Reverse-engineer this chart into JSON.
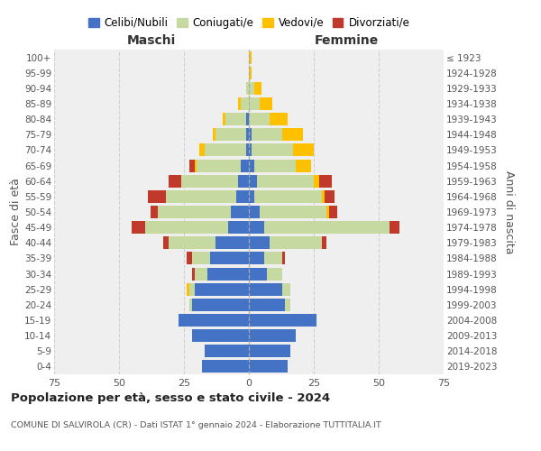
{
  "age_groups": [
    "0-4",
    "5-9",
    "10-14",
    "15-19",
    "20-24",
    "25-29",
    "30-34",
    "35-39",
    "40-44",
    "45-49",
    "50-54",
    "55-59",
    "60-64",
    "65-69",
    "70-74",
    "75-79",
    "80-84",
    "85-89",
    "90-94",
    "95-99",
    "100+"
  ],
  "birth_years": [
    "2019-2023",
    "2014-2018",
    "2009-2013",
    "2004-2008",
    "1999-2003",
    "1994-1998",
    "1989-1993",
    "1984-1988",
    "1979-1983",
    "1974-1978",
    "1969-1973",
    "1964-1968",
    "1959-1963",
    "1954-1958",
    "1949-1953",
    "1944-1948",
    "1939-1943",
    "1934-1938",
    "1929-1933",
    "1924-1928",
    "≤ 1923"
  ],
  "male": {
    "celibe": [
      18,
      17,
      22,
      27,
      22,
      21,
      16,
      15,
      13,
      8,
      7,
      5,
      4,
      3,
      1,
      1,
      1,
      0,
      0,
      0,
      0
    ],
    "coniugato": [
      0,
      0,
      0,
      0,
      1,
      2,
      5,
      7,
      18,
      32,
      28,
      27,
      22,
      17,
      16,
      12,
      8,
      3,
      1,
      0,
      0
    ],
    "vedovo": [
      0,
      0,
      0,
      0,
      0,
      1,
      0,
      0,
      0,
      0,
      0,
      0,
      0,
      1,
      2,
      1,
      1,
      1,
      0,
      0,
      0
    ],
    "divorziato": [
      0,
      0,
      0,
      0,
      0,
      0,
      1,
      2,
      2,
      5,
      3,
      7,
      5,
      2,
      0,
      0,
      0,
      0,
      0,
      0,
      0
    ]
  },
  "female": {
    "nubile": [
      15,
      16,
      18,
      26,
      14,
      13,
      7,
      6,
      8,
      6,
      4,
      2,
      3,
      2,
      1,
      1,
      0,
      0,
      0,
      0,
      0
    ],
    "coniugata": [
      0,
      0,
      0,
      0,
      2,
      3,
      6,
      7,
      20,
      48,
      26,
      26,
      22,
      16,
      16,
      12,
      8,
      4,
      2,
      0,
      0
    ],
    "vedova": [
      0,
      0,
      0,
      0,
      0,
      0,
      0,
      0,
      0,
      0,
      1,
      1,
      2,
      6,
      8,
      8,
      7,
      5,
      3,
      1,
      1
    ],
    "divorziata": [
      0,
      0,
      0,
      0,
      0,
      0,
      0,
      1,
      2,
      4,
      3,
      4,
      5,
      0,
      0,
      0,
      0,
      0,
      0,
      0,
      0
    ]
  },
  "colors": {
    "celibe": "#4472C4",
    "coniugato": "#c6d9a0",
    "vedovo": "#ffc000",
    "divorziato": "#c0392b"
  },
  "title": "Popolazione per età, sesso e stato civile - 2024",
  "subtitle": "COMUNE DI SALVIROLA (CR) - Dati ISTAT 1° gennaio 2024 - Elaborazione TUTTITALIA.IT",
  "xlabel_left": "Maschi",
  "xlabel_right": "Femmine",
  "ylabel_left": "Fasce di età",
  "ylabel_right": "Anni di nascita",
  "xlim": 75,
  "legend_labels": [
    "Celibi/Nubili",
    "Coniugati/e",
    "Vedovi/e",
    "Divorziati/e"
  ],
  "background_color": "#ffffff",
  "plot_bg_color": "#efefef",
  "grid_color": "#cccccc"
}
